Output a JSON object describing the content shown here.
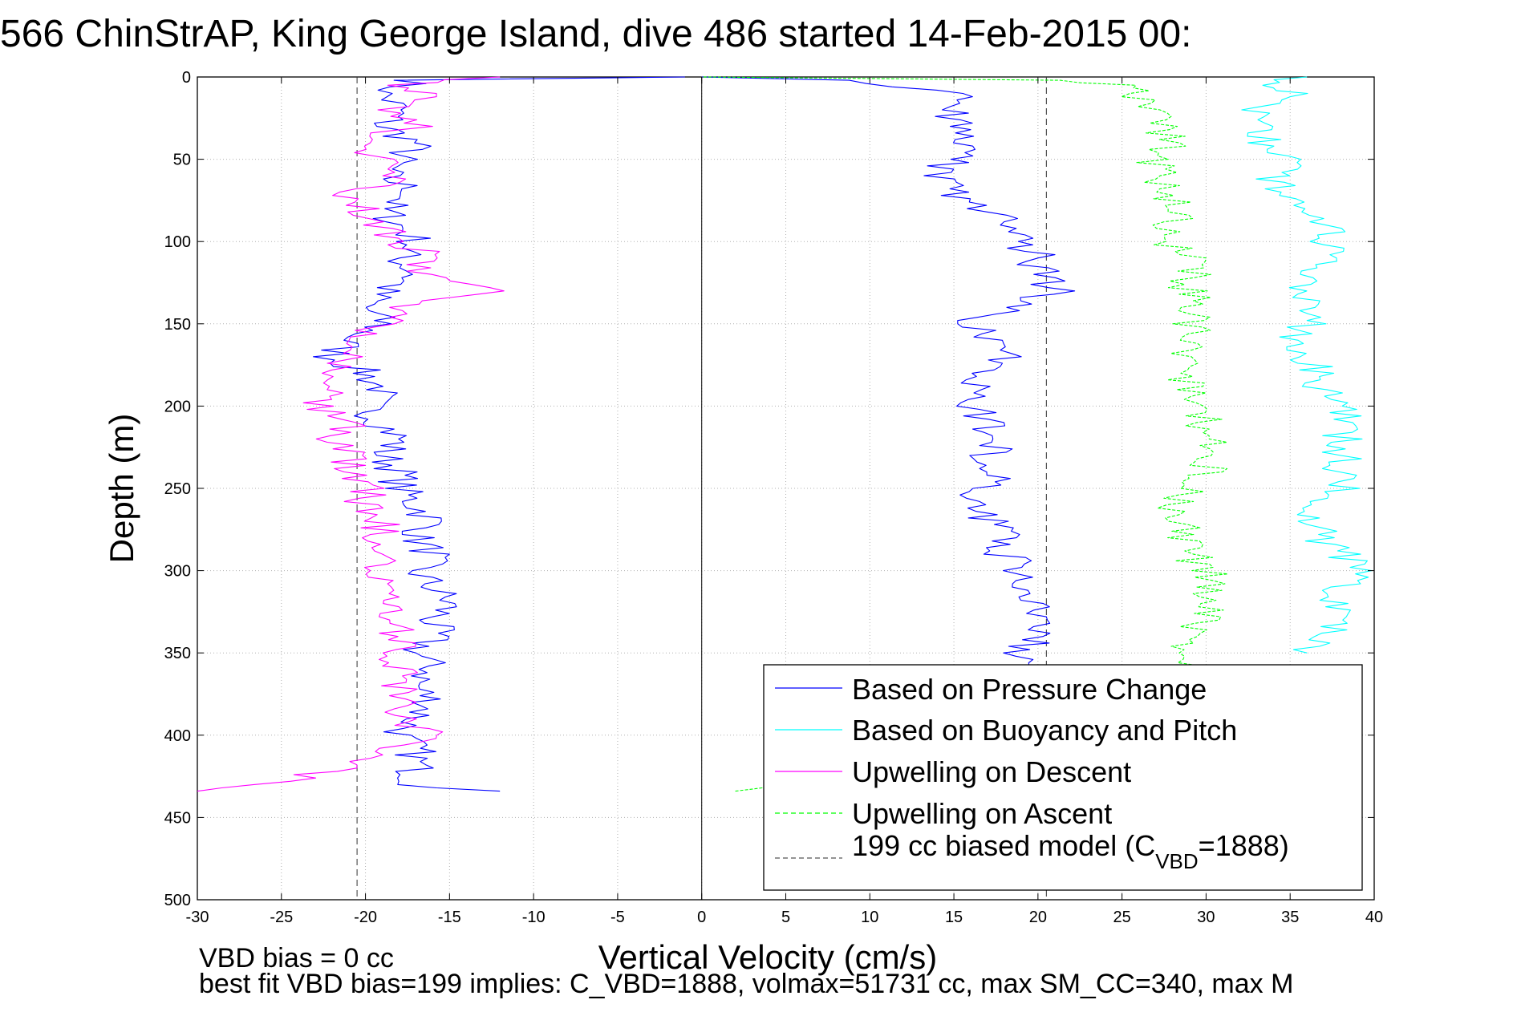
{
  "chart_data": {
    "type": "line",
    "title": "566 ChinStrAP, King George Island, dive 486 started 14-Feb-2015 00:",
    "xlabel": "Vertical Velocity (cm/s)",
    "ylabel": "Depth (m)",
    "xlim": [
      -30,
      40
    ],
    "ylim": [
      0,
      500
    ],
    "y_reversed": true,
    "grid": true,
    "x_ticks": [
      "-30",
      "-25",
      "-20",
      "-15",
      "-10",
      "-5",
      "0",
      "5",
      "10",
      "15",
      "20",
      "25",
      "30",
      "35",
      "40"
    ],
    "y_ticks": [
      "0",
      "50",
      "100",
      "150",
      "200",
      "250",
      "300",
      "350",
      "400",
      "450",
      "500"
    ],
    "legend_position": "bottom-right",
    "legend": [
      {
        "label": "Based on Pressure Change",
        "color": "#0000ff",
        "dashed": false
      },
      {
        "label": "Based on Buoyancy and Pitch",
        "color": "#00ffff",
        "dashed": false
      },
      {
        "label": "Upwelling on Descent",
        "color": "#ff00ff",
        "dashed": false
      },
      {
        "label": "Upwelling on Ascent",
        "color": "#00ff00",
        "dashed": true
      },
      {
        "label": "199 cc biased model (C",
        "sub": "VBD",
        "suffix": "=1888)",
        "color": "#000000",
        "dashed": true
      }
    ],
    "series": [
      {
        "key": "pressure_descent",
        "color": "#0000ff",
        "dashed": false,
        "depth": [
          0,
          2,
          10,
          20,
          30,
          40,
          50,
          60,
          70,
          80,
          90,
          100,
          110,
          120,
          130,
          140,
          150,
          160,
          170,
          180,
          190,
          200,
          210,
          220,
          230,
          240,
          250,
          260,
          270,
          280,
          290,
          300,
          310,
          320,
          330,
          340,
          350,
          360,
          370,
          380,
          390,
          400,
          410,
          420,
          430,
          434
        ],
        "velocity": [
          -1,
          -17,
          -19,
          -18,
          -19,
          -17,
          -18,
          -19,
          -17,
          -19,
          -18,
          -17,
          -18,
          -17,
          -19,
          -20,
          -19,
          -21,
          -22,
          -20,
          -19,
          -20,
          -19,
          -18,
          -19,
          -18,
          -18,
          -17,
          -16,
          -17,
          -16,
          -17,
          -16,
          -15,
          -16,
          -16,
          -17,
          -16,
          -17,
          -16,
          -17,
          -18,
          -17,
          -17,
          -17,
          -12
        ]
      },
      {
        "key": "pressure_ascent",
        "color": "#0000ff",
        "dashed": false,
        "depth": [
          434,
          400,
          380,
          370,
          360,
          350,
          340,
          330,
          320,
          310,
          300,
          290,
          280,
          270,
          260,
          250,
          240,
          230,
          220,
          210,
          200,
          190,
          180,
          170,
          160,
          150,
          140,
          130,
          120,
          110,
          100,
          90,
          80,
          70,
          60,
          50,
          40,
          30,
          20,
          10,
          2,
          0
        ],
        "velocity": [
          20,
          20,
          20,
          20,
          19,
          19,
          20,
          20,
          20,
          19,
          19,
          18,
          18,
          17,
          16,
          17,
          18,
          17,
          18,
          17,
          16,
          16,
          17,
          18,
          17,
          16,
          18,
          21,
          20,
          20,
          19,
          18,
          17,
          15,
          14,
          15,
          16,
          15,
          15,
          15,
          8,
          0
        ]
      },
      {
        "key": "buoyancy_pitch",
        "color": "#00ffff",
        "dashed": false,
        "depth": [
          0,
          5,
          10,
          20,
          30,
          40,
          50,
          60,
          70,
          80,
          90,
          100,
          110,
          120,
          130,
          140,
          150,
          160,
          170,
          180,
          190,
          200,
          210,
          220,
          230,
          240,
          250,
          260,
          270,
          280,
          290,
          300,
          310,
          320,
          330,
          340,
          350
        ],
        "velocity": [
          36,
          34,
          35,
          33,
          34,
          33,
          35,
          34,
          35,
          36,
          37,
          37,
          37,
          36,
          35,
          36,
          36,
          35,
          36,
          37,
          37,
          38,
          38,
          38,
          38,
          38,
          38,
          36,
          36,
          37,
          38,
          39,
          38,
          38,
          38,
          37,
          36
        ]
      },
      {
        "key": "upwelling_descent",
        "color": "#ff00ff",
        "dashed": false,
        "depth": [
          0,
          5,
          10,
          20,
          30,
          40,
          50,
          60,
          70,
          80,
          90,
          100,
          110,
          120,
          130,
          140,
          150,
          160,
          170,
          180,
          190,
          200,
          210,
          220,
          230,
          240,
          250,
          260,
          270,
          280,
          290,
          300,
          310,
          320,
          330,
          340,
          350,
          360,
          370,
          380,
          390,
          400,
          410,
          420,
          430,
          434
        ],
        "velocity": [
          -12,
          -18,
          -16,
          -19,
          -17,
          -21,
          -19,
          -18,
          -21,
          -20,
          -19,
          -18,
          -16,
          -17,
          -12,
          -18,
          -19,
          -20,
          -21,
          -22,
          -22,
          -23,
          -21,
          -22,
          -21,
          -21,
          -20,
          -20,
          -19,
          -19,
          -19,
          -20,
          -19,
          -18,
          -19,
          -18,
          -18,
          -18,
          -18,
          -17,
          -18,
          -16,
          -20,
          -21,
          -26,
          -30
        ]
      },
      {
        "key": "upwelling_ascent",
        "color": "#00ff00",
        "dashed": true,
        "depth": [
          434,
          400,
          380,
          370,
          360,
          350,
          340,
          330,
          320,
          310,
          300,
          290,
          280,
          270,
          260,
          250,
          240,
          230,
          220,
          210,
          200,
          190,
          180,
          170,
          160,
          150,
          140,
          130,
          120,
          110,
          100,
          90,
          80,
          70,
          60,
          50,
          40,
          30,
          20,
          10,
          5,
          2,
          0
        ],
        "velocity": [
          2,
          29,
          29,
          29,
          29,
          29,
          29,
          30,
          30,
          30,
          30,
          29,
          29,
          28,
          28,
          29,
          30,
          30,
          30,
          30,
          29,
          29,
          29,
          29,
          29,
          29,
          29,
          29,
          29,
          29,
          28,
          28,
          28,
          28,
          27,
          27,
          28,
          27,
          27,
          26,
          25,
          22,
          0
        ]
      }
    ],
    "reference_lines": [
      {
        "velocity": -20.5,
        "dashed": true,
        "color": "#000000"
      },
      {
        "velocity": 20.5,
        "dashed": true,
        "color": "#000000"
      },
      {
        "velocity": 0,
        "dashed": false,
        "color": "#000000"
      }
    ],
    "annotations": [
      "VBD bias = 0 cc",
      "best fit VBD bias=199 implies: C_VBD=1888, volmax=51731 cc, max SM_CC=340, max M"
    ]
  }
}
